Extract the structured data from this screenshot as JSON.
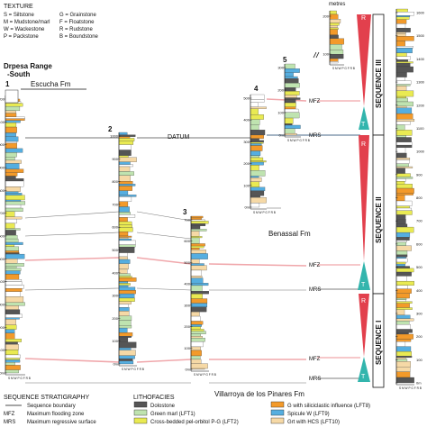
{
  "colors": {
    "dolostone": "#555555",
    "green_marl": "#bfe3b0",
    "cross_bedded": "#e9ea52",
    "g_siliciclastic": "#f39a2a",
    "spicule": "#55aee0",
    "grt_hcs": "#f6d9a6",
    "correlation_pink": "#f0a7ab",
    "sequence_red": "#e2404d",
    "sequence_teal": "#33b5ad",
    "datum_line": "#4a6a8a"
  },
  "texture_legend": {
    "title": "TEXTURE",
    "items": [
      "S = Siltstone",
      "G = Grainstone",
      "M = Mudstone/marl",
      "F = Floatstone",
      "W = Wackestone",
      "R = Rudstone",
      "P = Packstone",
      "B = Boundstone"
    ]
  },
  "sections": {
    "s1": {
      "number": "1",
      "title_line1": "Drpesa Range",
      "title_line2": "-South",
      "ticks": [
        "0m",
        "100",
        "200",
        "300",
        "400",
        "500",
        "600",
        "700",
        "800",
        "900",
        "1000",
        "1100",
        "1200"
      ]
    },
    "s2": {
      "number": "2",
      "ticks": [
        "0m",
        "100",
        "200",
        "300",
        "400",
        "500",
        "600",
        "700",
        "800",
        "900",
        "1000"
      ]
    },
    "s3": {
      "number": "3",
      "ticks": [
        "0m",
        "100",
        "200",
        "300",
        "400",
        "500",
        "600",
        "700"
      ]
    },
    "s4": {
      "number": "4",
      "ticks": [
        "0m",
        "100",
        "200",
        "300",
        "400",
        "500"
      ]
    },
    "s5": {
      "number": "5",
      "ticks": [
        "0m",
        "100",
        "200",
        "300"
      ]
    },
    "s6": {
      "unit": "metres",
      "ticks": [
        "100",
        "200"
      ]
    },
    "s7": {
      "ticks": [
        "0m",
        "100",
        "200",
        "300",
        "400",
        "500",
        "600",
        "700",
        "800",
        "900",
        "1000",
        "1100",
        "1200",
        "1300",
        "1400",
        "1500",
        "1600"
      ]
    }
  },
  "axis_letters": "S M W P G F R B",
  "formations": {
    "escucha": "Escucha Fm",
    "benassal": "Benassal Fm",
    "villarroya": "Villarroya de los Pinares Fm"
  },
  "surfaces": {
    "datum": "DATUM",
    "mfz": "MFZ",
    "mrs": "MRS"
  },
  "sequence_letters": {
    "r": "R",
    "t": "T"
  },
  "sequence_names": {
    "s1": "SEQUENCE I",
    "s2": "SEQUENCE II",
    "s3": "SEQUENCE III"
  },
  "sequence_legend": {
    "title": "SEQUENCE STRATIGRAPHY",
    "items": [
      {
        "symbol": "",
        "text": "Sequence boundary"
      },
      {
        "symbol": "MFZ",
        "text": "Maximum flooding zone"
      },
      {
        "symbol": "MRS",
        "text": "Maximum regressive surface"
      }
    ]
  },
  "lithofacies_legend": {
    "title": "LITHOFACIES",
    "left": [
      {
        "name": "Dolostone"
      },
      {
        "name": "Green marl (LFT1)"
      },
      {
        "name": "Cross-bedded pel-orbitol P-G (LFT2)"
      }
    ],
    "right": [
      {
        "name": "G with siliciclastic influence (LFT8)"
      },
      {
        "name": "Spicule W (LFT9)"
      },
      {
        "name": "Grt with HCS (LFT10)"
      }
    ]
  }
}
